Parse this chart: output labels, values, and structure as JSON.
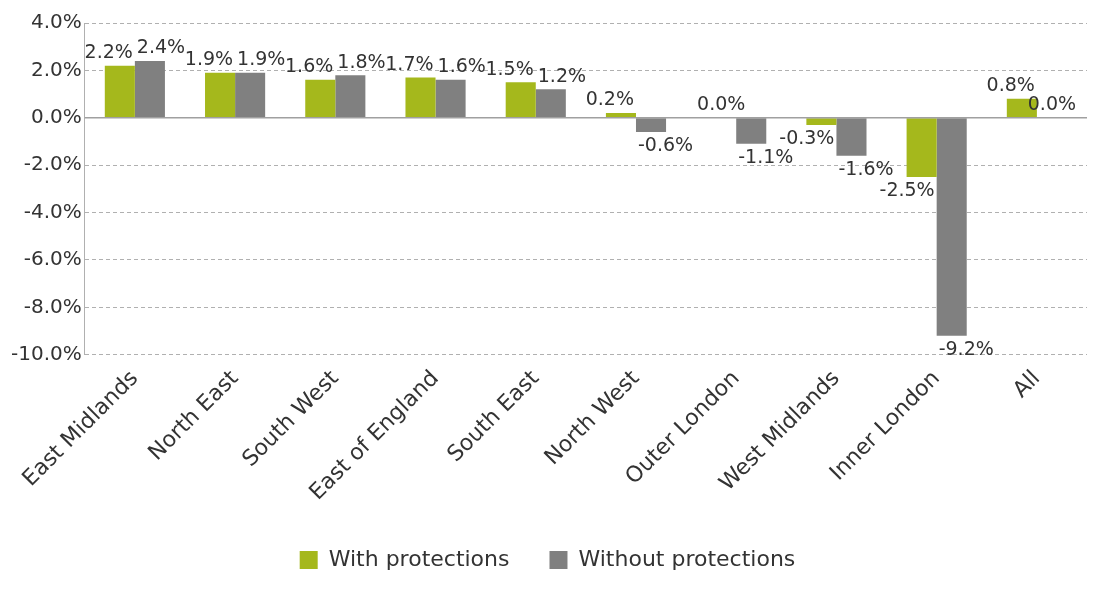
{
  "chart_data": {
    "type": "bar",
    "categories": [
      "East Midlands",
      "North East",
      "South West",
      "East of England",
      "South East",
      "North West",
      "Outer London",
      "West Midlands",
      "Inner London",
      "All"
    ],
    "series": [
      {
        "name": "With protections",
        "color": "#a5b81c",
        "values": [
          2.2,
          1.9,
          1.6,
          1.7,
          1.5,
          0.2,
          0.0,
          -0.3,
          -2.5,
          0.8
        ],
        "value_labels": [
          "2.2%",
          "1.9%",
          "1.6%",
          "1.7%",
          "1.5%",
          "0.2%",
          "0.0%",
          "-0.3%",
          "-2.5%",
          "0.8%"
        ]
      },
      {
        "name": "Without protections",
        "color": "#808080",
        "values": [
          2.4,
          1.9,
          1.8,
          1.6,
          1.2,
          -0.6,
          -1.1,
          -1.6,
          -9.2,
          0.0
        ],
        "value_labels": [
          "2.4%",
          "1.9%",
          "1.8%",
          "1.6%",
          "1.2%",
          "-0.6%",
          "-1.1%",
          "-1.6%",
          "-9.2%",
          "0.0%"
        ]
      }
    ],
    "ylim": [
      -10,
      4
    ],
    "yticks": [
      {
        "value": -10,
        "label": "-10.0%"
      },
      {
        "value": -8,
        "label": "-8.0%"
      },
      {
        "value": -6,
        "label": "-6.0%"
      },
      {
        "value": -4,
        "label": "-4.0%"
      },
      {
        "value": -2,
        "label": "-2.0%"
      },
      {
        "value": 0,
        "label": "0.0%"
      },
      {
        "value": 2,
        "label": "2.0%"
      },
      {
        "value": 4,
        "label": "4.0%"
      }
    ],
    "grid": "y",
    "legend": "bottom"
  }
}
